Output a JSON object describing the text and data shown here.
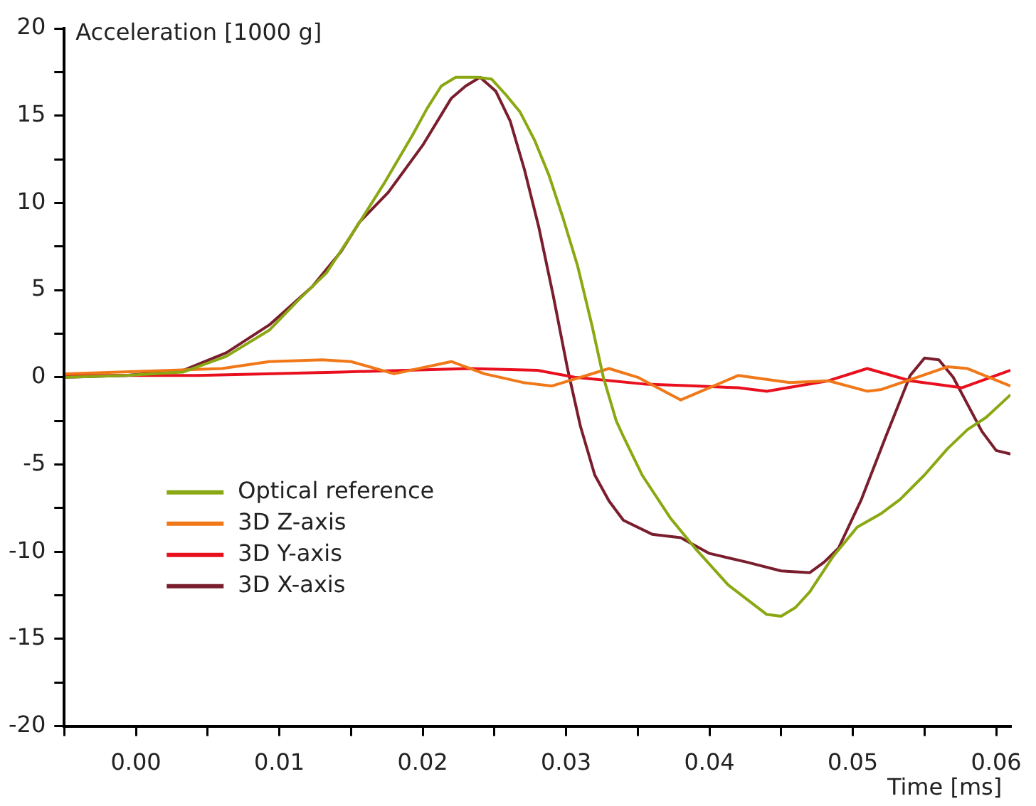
{
  "chart_data": {
    "type": "line",
    "xlabel": "Time [ms]",
    "ylabel": "Acceleration [1000 g]",
    "xlim": [
      -0.005,
      0.061
    ],
    "xticks": [
      {
        "value": -0.005,
        "label": null
      },
      "0.00",
      {
        "value": 0.005,
        "label": null
      },
      {
        "value": 0.01,
        "label": "0.01"
      },
      {
        "value": 0.015,
        "label": null
      },
      {
        "value": 0.02,
        "label": "0.02"
      },
      {
        "value": 0.025,
        "label": null
      },
      {
        "value": 0.03,
        "label": "0.03"
      },
      {
        "value": 0.035,
        "label": null
      },
      {
        "value": 0.04,
        "label": "0.04"
      },
      {
        "value": 0.045,
        "label": null
      },
      {
        "value": 0.05,
        "label": "0.05"
      },
      {
        "value": 0.055,
        "label": null
      },
      {
        "value": 0.06,
        "label": "0.06"
      }
    ],
    "ylim": [
      -20,
      20
    ],
    "yticks": [
      -20,
      {
        "value": -17.5,
        "label": null
      },
      -15,
      {
        "value": -12.5,
        "label": null
      },
      -10,
      {
        "value": -7.5,
        "label": null
      },
      -5,
      {
        "value": -2.5,
        "label": null
      },
      0,
      {
        "value": 2.5,
        "label": null
      },
      5,
      {
        "value": 7.5,
        "label": null
      },
      10,
      {
        "value": 12.5,
        "label": null
      },
      15,
      {
        "value": 17.5,
        "label": null
      },
      20
    ],
    "grid": false,
    "legend": "bottom left",
    "marker": "none",
    "line_style": "solid",
    "series": [
      {
        "name": "Optical reference",
        "color": "#8aa812",
        "x": [
          -0.0049,
          -0.0007,
          0.0033,
          0.0063,
          0.0093,
          0.0113,
          0.0133,
          0.0153,
          0.0173,
          0.0193,
          0.0203,
          0.0213,
          0.0223,
          0.0238,
          0.0248,
          0.0258,
          0.0268,
          0.0278,
          0.0288,
          0.0298,
          0.0308,
          0.0318,
          0.0326,
          0.0335,
          0.034,
          0.0353,
          0.0373,
          0.039,
          0.0413,
          0.044,
          0.045,
          0.046,
          0.047,
          0.0486,
          0.0503,
          0.052,
          0.0533,
          0.055,
          0.0566,
          0.058,
          0.0593,
          0.061
        ],
        "values": [
          0,
          0.1,
          0.3,
          1.2,
          2.7,
          4.4,
          6.0,
          8.5,
          11.1,
          13.9,
          15.4,
          16.7,
          17.2,
          17.2,
          17.1,
          16.2,
          15.2,
          13.6,
          11.6,
          9.1,
          6.4,
          3.0,
          0,
          -2.5,
          -3.4,
          -5.6,
          -8.1,
          -9.8,
          -11.9,
          -13.6,
          -13.7,
          -13.2,
          -12.3,
          -10.3,
          -8.6,
          -7.8,
          -7.0,
          -5.6,
          -4.1,
          -3.0,
          -2.3,
          -1.0
        ]
      },
      {
        "name": "3D Z-axis",
        "color": "#f07818",
        "x": [
          -0.0049,
          0.006,
          0.0093,
          0.013,
          0.015,
          0.018,
          0.022,
          0.0243,
          0.027,
          0.029,
          0.033,
          0.035,
          0.038,
          0.042,
          0.0456,
          0.0483,
          0.051,
          0.052,
          0.0566,
          0.058,
          0.061
        ],
        "values": [
          0.2,
          0.5,
          0.9,
          1.0,
          0.9,
          0.2,
          0.9,
          0.2,
          -0.3,
          -0.5,
          0.5,
          0,
          -1.3,
          0.1,
          -0.3,
          -0.2,
          -0.8,
          -0.7,
          0.6,
          0.5,
          -0.5
        ]
      },
      {
        "name": "3D Y-axis",
        "color": "#e8101e",
        "x": [
          -0.0049,
          0.0043,
          0.0143,
          0.0233,
          0.028,
          0.0306,
          0.0356,
          0.039,
          0.042,
          0.044,
          0.0483,
          0.051,
          0.054,
          0.0576,
          0.061
        ],
        "values": [
          0.1,
          0.1,
          0.3,
          0.5,
          0.4,
          0,
          -0.4,
          -0.5,
          -0.6,
          -0.8,
          -0.2,
          0.5,
          -0.2,
          -0.6,
          0.4
        ]
      },
      {
        "name": "3D X-axis",
        "color": "#7a1e2e",
        "x": [
          -0.0049,
          -0.0007,
          0.0033,
          0.0063,
          0.0093,
          0.0123,
          0.0143,
          0.0156,
          0.0176,
          0.02,
          0.022,
          0.023,
          0.024,
          0.0251,
          0.0261,
          0.0271,
          0.0281,
          0.0291,
          0.0301,
          0.031,
          0.032,
          0.033,
          0.034,
          0.036,
          0.038,
          0.04,
          0.0426,
          0.045,
          0.047,
          0.048,
          0.049,
          0.0506,
          0.0523,
          0.054,
          0.055,
          0.056,
          0.057,
          0.059,
          0.06,
          0.061
        ],
        "values": [
          0,
          0.1,
          0.4,
          1.4,
          3.0,
          5.2,
          7.2,
          8.9,
          10.6,
          13.3,
          16.0,
          16.7,
          17.2,
          16.4,
          14.7,
          11.9,
          8.6,
          4.7,
          0.5,
          -2.8,
          -5.6,
          -7.1,
          -8.2,
          -9.0,
          -9.2,
          -10.1,
          -10.6,
          -11.1,
          -11.2,
          -10.6,
          -9.8,
          -7.0,
          -3.4,
          0.1,
          1.1,
          1.0,
          0,
          -3.1,
          -4.2,
          -4.4
        ]
      }
    ]
  }
}
